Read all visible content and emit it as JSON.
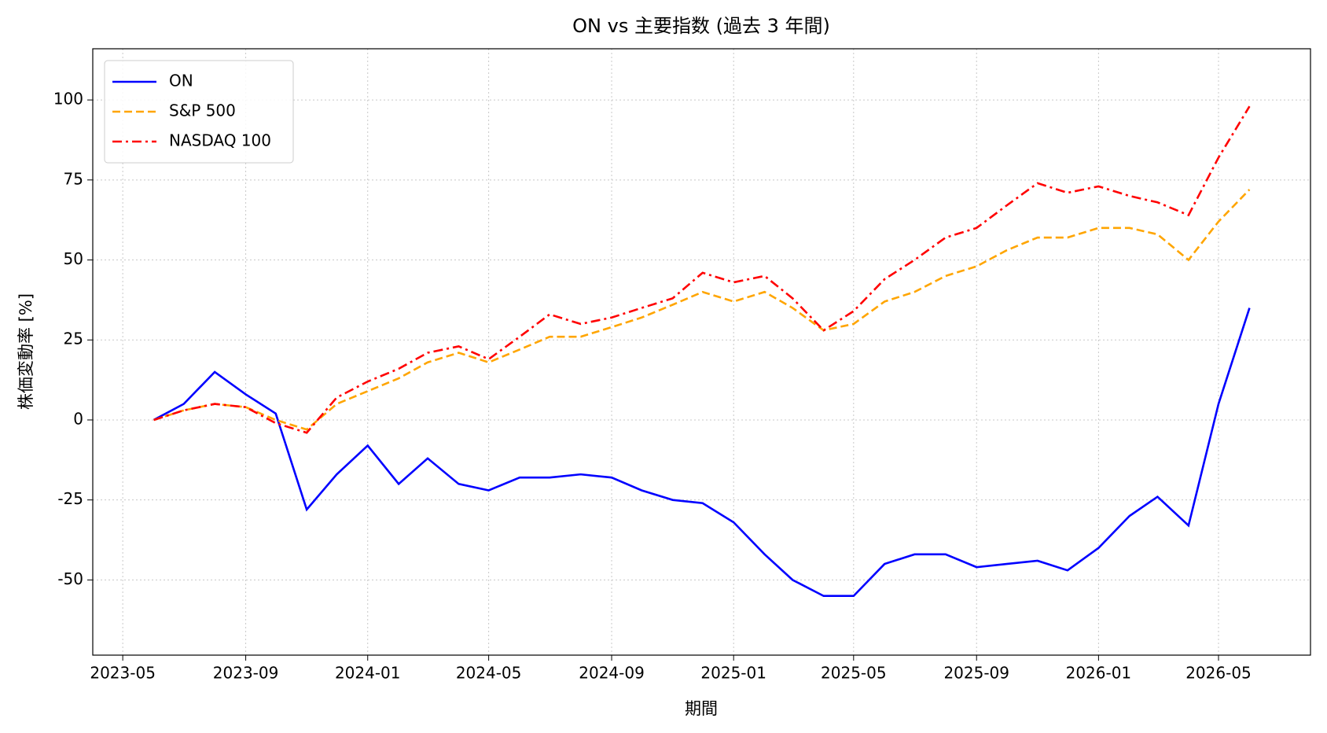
{
  "chart_data": {
    "type": "line",
    "title": "ON vs 主要指数 (過去 3 年間)",
    "xlabel": "期間",
    "ylabel": "株価変動率 [%]",
    "x": [
      "2023-06",
      "2023-07",
      "2023-08",
      "2023-09",
      "2023-10",
      "2023-11",
      "2023-12",
      "2024-01",
      "2024-02",
      "2024-03",
      "2024-04",
      "2024-05",
      "2024-06",
      "2024-07",
      "2024-08",
      "2024-09",
      "2024-10",
      "2024-11",
      "2024-12",
      "2025-01",
      "2025-02",
      "2025-03",
      "2025-04",
      "2025-05",
      "2025-06",
      "2025-07",
      "2025-08",
      "2025-09",
      "2025-10",
      "2025-11",
      "2025-12",
      "2026-01",
      "2026-02",
      "2026-03",
      "2026-04",
      "2026-05",
      "2026-06"
    ],
    "series": [
      {
        "name": "ON",
        "color": "#0000ff",
        "linestyle": "solid",
        "values": [
          0,
          5,
          15,
          8,
          2,
          -28,
          -17,
          -8,
          -20,
          -12,
          -20,
          -22,
          -18,
          -18,
          -17,
          -18,
          -22,
          -25,
          -26,
          -32,
          -42,
          -50,
          -55,
          -55,
          -45,
          -42,
          -42,
          -46,
          -45,
          -44,
          -47,
          -40,
          -30,
          -24,
          -33,
          5,
          35
        ]
      },
      {
        "name": "S&P 500",
        "color": "#ffa500",
        "linestyle": "dashed",
        "values": [
          0,
          3,
          5,
          4,
          0,
          -3,
          5,
          9,
          13,
          18,
          21,
          18,
          22,
          26,
          26,
          29,
          32,
          36,
          40,
          37,
          40,
          35,
          28,
          30,
          37,
          40,
          45,
          48,
          53,
          57,
          57,
          60,
          60,
          58,
          50,
          62,
          72
        ]
      },
      {
        "name": "NASDAQ 100",
        "color": "#ff0000",
        "linestyle": "dashdot",
        "values": [
          0,
          3,
          5,
          4,
          -1,
          -4,
          7,
          12,
          16,
          21,
          23,
          19,
          26,
          33,
          30,
          32,
          35,
          38,
          46,
          43,
          45,
          38,
          28,
          34,
          44,
          50,
          57,
          60,
          67,
          74,
          71,
          73,
          70,
          68,
          64,
          82,
          98
        ]
      }
    ],
    "xlim": [
      "2023-04",
      "2026-08"
    ],
    "xticks": [
      "2023-05",
      "2023-09",
      "2024-01",
      "2024-05",
      "2024-09",
      "2025-01",
      "2025-05",
      "2025-09",
      "2026-01",
      "2026-05"
    ],
    "ylim": [
      -73.5,
      116
    ],
    "yticks": [
      -50,
      -25,
      0,
      25,
      50,
      75,
      100
    ],
    "grid": true,
    "legend": "upper left"
  }
}
